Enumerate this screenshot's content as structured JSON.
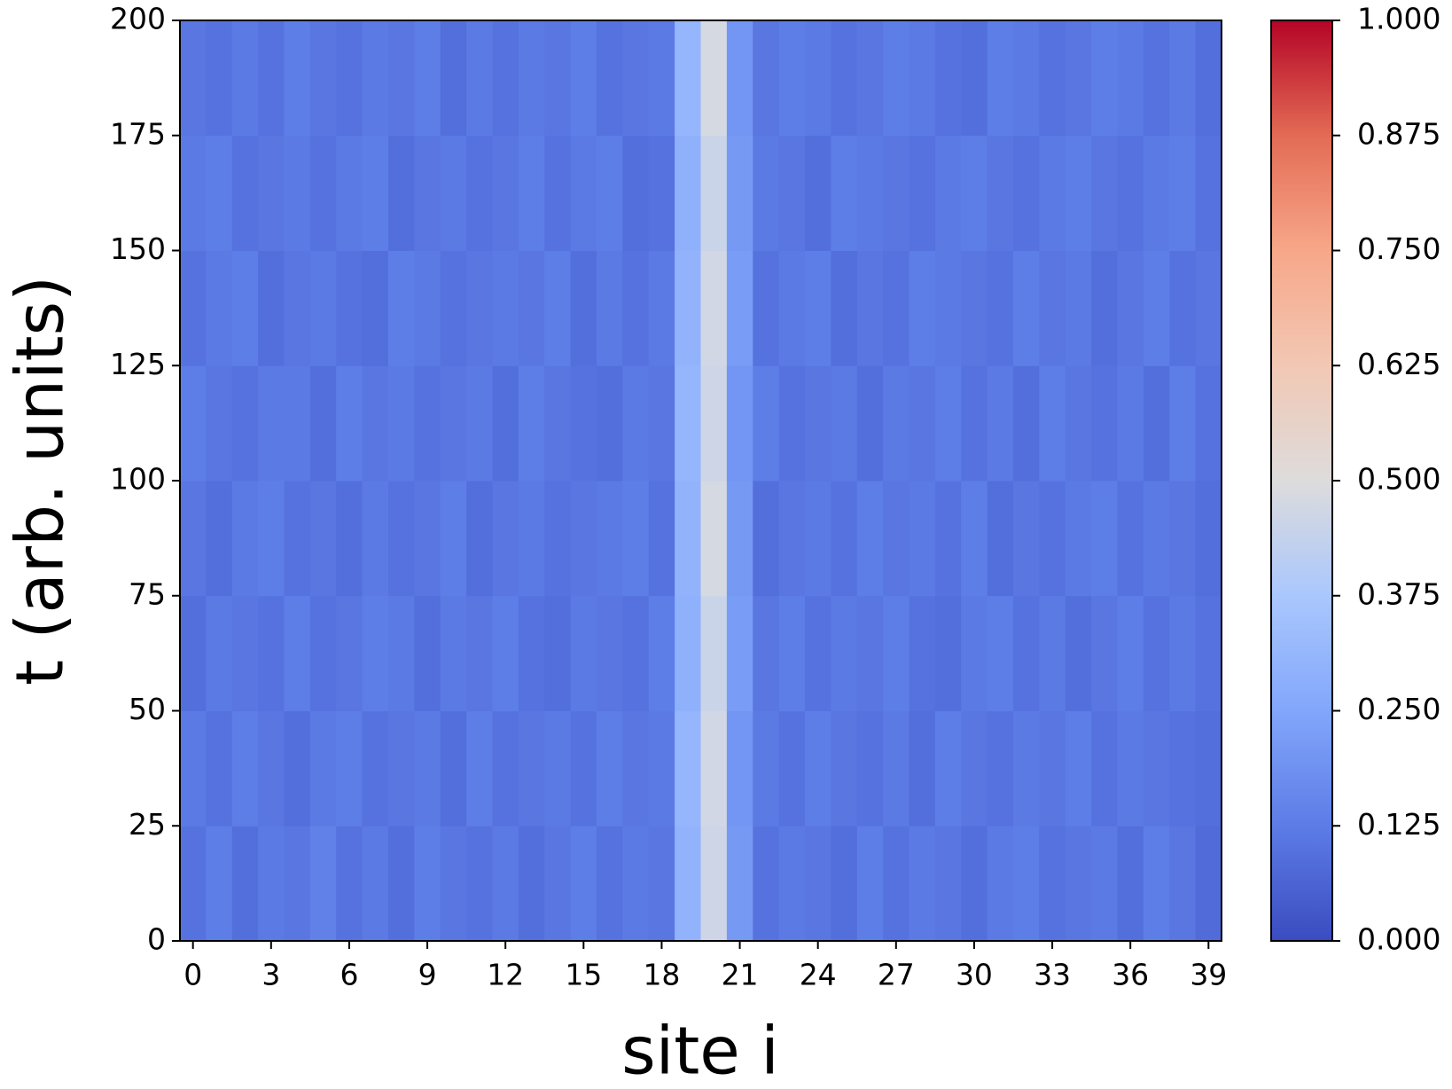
{
  "chart_data": {
    "type": "heatmap",
    "xlabel": "site i",
    "ylabel": "t (arb. units)",
    "colormap": "coolwarm",
    "x": [
      0,
      1,
      2,
      3,
      4,
      5,
      6,
      7,
      8,
      9,
      10,
      11,
      12,
      13,
      14,
      15,
      16,
      17,
      18,
      19,
      20,
      21,
      22,
      23,
      24,
      25,
      26,
      27,
      28,
      29,
      30,
      31,
      32,
      33,
      34,
      35,
      36,
      37,
      38,
      39
    ],
    "y_bins": [
      0,
      25,
      50,
      75,
      100,
      125,
      150,
      175,
      200
    ],
    "values": [
      [
        0.1,
        0.13,
        0.09,
        0.12,
        0.11,
        0.14,
        0.1,
        0.12,
        0.09,
        0.13,
        0.11,
        0.1,
        0.12,
        0.09,
        0.11,
        0.13,
        0.1,
        0.12,
        0.11,
        0.3,
        0.46,
        0.21,
        0.1,
        0.12,
        0.11,
        0.09,
        0.13,
        0.1,
        0.12,
        0.11,
        0.09,
        0.12,
        0.13,
        0.1,
        0.11,
        0.12,
        0.09,
        0.13,
        0.11,
        0.08
      ],
      [
        0.12,
        0.1,
        0.13,
        0.11,
        0.09,
        0.12,
        0.13,
        0.1,
        0.11,
        0.12,
        0.09,
        0.13,
        0.1,
        0.11,
        0.12,
        0.1,
        0.13,
        0.11,
        0.12,
        0.31,
        0.47,
        0.2,
        0.12,
        0.1,
        0.13,
        0.11,
        0.1,
        0.12,
        0.09,
        0.13,
        0.11,
        0.1,
        0.12,
        0.11,
        0.13,
        0.1,
        0.12,
        0.11,
        0.1,
        0.09
      ],
      [
        0.09,
        0.12,
        0.11,
        0.1,
        0.13,
        0.1,
        0.11,
        0.13,
        0.12,
        0.09,
        0.12,
        0.11,
        0.13,
        0.1,
        0.09,
        0.12,
        0.11,
        0.1,
        0.13,
        0.29,
        0.45,
        0.22,
        0.11,
        0.13,
        0.1,
        0.12,
        0.11,
        0.13,
        0.1,
        0.09,
        0.12,
        0.13,
        0.1,
        0.12,
        0.09,
        0.11,
        0.13,
        0.1,
        0.12,
        0.1
      ],
      [
        0.11,
        0.09,
        0.12,
        0.13,
        0.1,
        0.11,
        0.09,
        0.12,
        0.1,
        0.11,
        0.13,
        0.09,
        0.11,
        0.12,
        0.1,
        0.11,
        0.12,
        0.13,
        0.1,
        0.3,
        0.48,
        0.21,
        0.09,
        0.11,
        0.12,
        0.1,
        0.13,
        0.11,
        0.12,
        0.1,
        0.13,
        0.09,
        0.11,
        0.1,
        0.12,
        0.13,
        0.1,
        0.12,
        0.11,
        0.09
      ],
      [
        0.13,
        0.11,
        0.1,
        0.12,
        0.12,
        0.09,
        0.13,
        0.11,
        0.12,
        0.1,
        0.11,
        0.12,
        0.09,
        0.13,
        0.11,
        0.1,
        0.09,
        0.12,
        0.11,
        0.31,
        0.46,
        0.2,
        0.13,
        0.1,
        0.11,
        0.12,
        0.09,
        0.12,
        0.11,
        0.13,
        0.1,
        0.12,
        0.09,
        0.13,
        0.11,
        0.1,
        0.12,
        0.09,
        0.13,
        0.1
      ],
      [
        0.1,
        0.12,
        0.13,
        0.09,
        0.11,
        0.12,
        0.1,
        0.09,
        0.13,
        0.12,
        0.1,
        0.11,
        0.12,
        0.11,
        0.13,
        0.09,
        0.12,
        0.1,
        0.12,
        0.3,
        0.47,
        0.22,
        0.1,
        0.12,
        0.13,
        0.09,
        0.11,
        0.1,
        0.13,
        0.12,
        0.11,
        0.1,
        0.13,
        0.11,
        0.12,
        0.09,
        0.11,
        0.13,
        0.1,
        0.11
      ],
      [
        0.12,
        0.13,
        0.1,
        0.11,
        0.12,
        0.1,
        0.12,
        0.13,
        0.09,
        0.11,
        0.12,
        0.1,
        0.11,
        0.13,
        0.1,
        0.12,
        0.13,
        0.09,
        0.1,
        0.29,
        0.45,
        0.21,
        0.12,
        0.11,
        0.09,
        0.13,
        0.12,
        0.11,
        0.1,
        0.12,
        0.13,
        0.11,
        0.1,
        0.12,
        0.13,
        0.11,
        0.1,
        0.12,
        0.13,
        0.1
      ],
      [
        0.11,
        0.1,
        0.12,
        0.1,
        0.13,
        0.11,
        0.1,
        0.12,
        0.11,
        0.13,
        0.09,
        0.12,
        0.1,
        0.12,
        0.11,
        0.13,
        0.1,
        0.11,
        0.12,
        0.31,
        0.48,
        0.2,
        0.11,
        0.13,
        0.12,
        0.1,
        0.11,
        0.13,
        0.12,
        0.1,
        0.09,
        0.13,
        0.12,
        0.1,
        0.11,
        0.13,
        0.12,
        0.1,
        0.12,
        0.09
      ]
    ],
    "xlim": [
      -0.5,
      39.5
    ],
    "xticks": [
      0,
      3,
      6,
      9,
      12,
      15,
      18,
      21,
      24,
      27,
      30,
      33,
      36,
      39
    ],
    "ylim": [
      0,
      200
    ],
    "yticks": [
      0,
      25,
      50,
      75,
      100,
      125,
      150,
      175,
      200
    ],
    "clim": [
      0,
      1
    ],
    "cticks": [
      {
        "value": 0,
        "label": "0.000"
      },
      {
        "value": 0.125,
        "label": "0.125"
      },
      {
        "value": 0.25,
        "label": "0.250"
      },
      {
        "value": 0.375,
        "label": "0.375"
      },
      {
        "value": 0.5,
        "label": "0.500"
      },
      {
        "value": 0.625,
        "label": "0.625"
      },
      {
        "value": 0.75,
        "label": "0.750"
      },
      {
        "value": 0.875,
        "label": "0.875"
      },
      {
        "value": 1,
        "label": "1.000"
      }
    ]
  }
}
